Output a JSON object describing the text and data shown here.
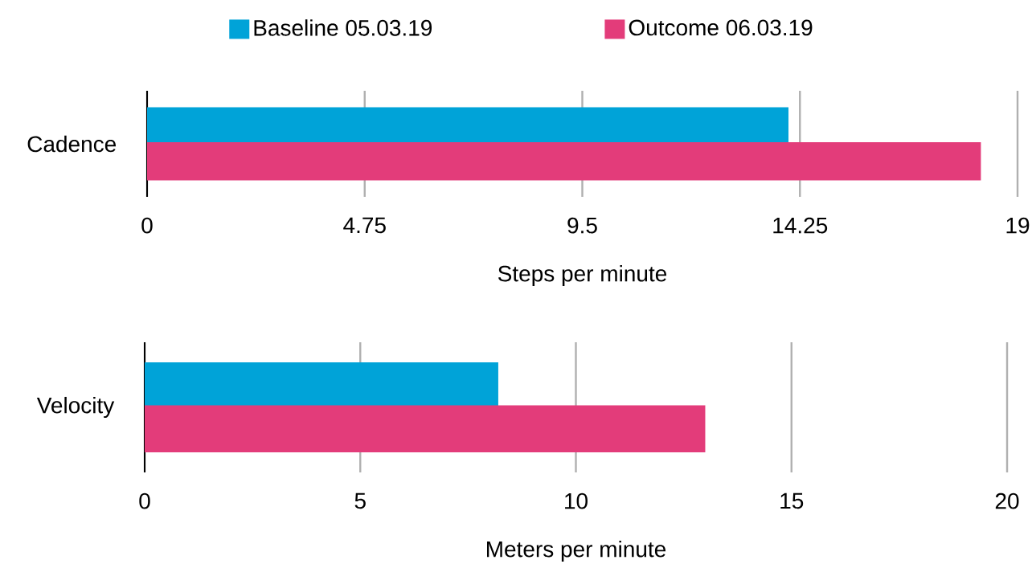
{
  "chart_data": [
    {
      "type": "bar",
      "orientation": "horizontal",
      "categories": [
        "Cadence"
      ],
      "xlabel": "Steps per minute",
      "xlim": [
        0,
        19
      ],
      "xticks": [
        0,
        4.75,
        9.5,
        14.25,
        19
      ],
      "grid": "x",
      "legend": "top",
      "series": [
        {
          "name": "Baseline 05.03.19",
          "color": "#00a3d8",
          "values": [
            14.0
          ]
        },
        {
          "name": "Outcome 06.03.19",
          "color": "#e33c7a",
          "values": [
            18.2
          ]
        }
      ]
    },
    {
      "type": "bar",
      "orientation": "horizontal",
      "categories": [
        "Velocity"
      ],
      "xlabel": "Meters per minute",
      "xlim": [
        0,
        20
      ],
      "xticks": [
        0,
        5,
        10,
        15,
        20
      ],
      "grid": "x",
      "series": [
        {
          "color": "#00a3d8",
          "values": [
            8.2
          ]
        },
        {
          "color": "#e33c7a",
          "values": [
            13.0
          ]
        }
      ]
    }
  ]
}
